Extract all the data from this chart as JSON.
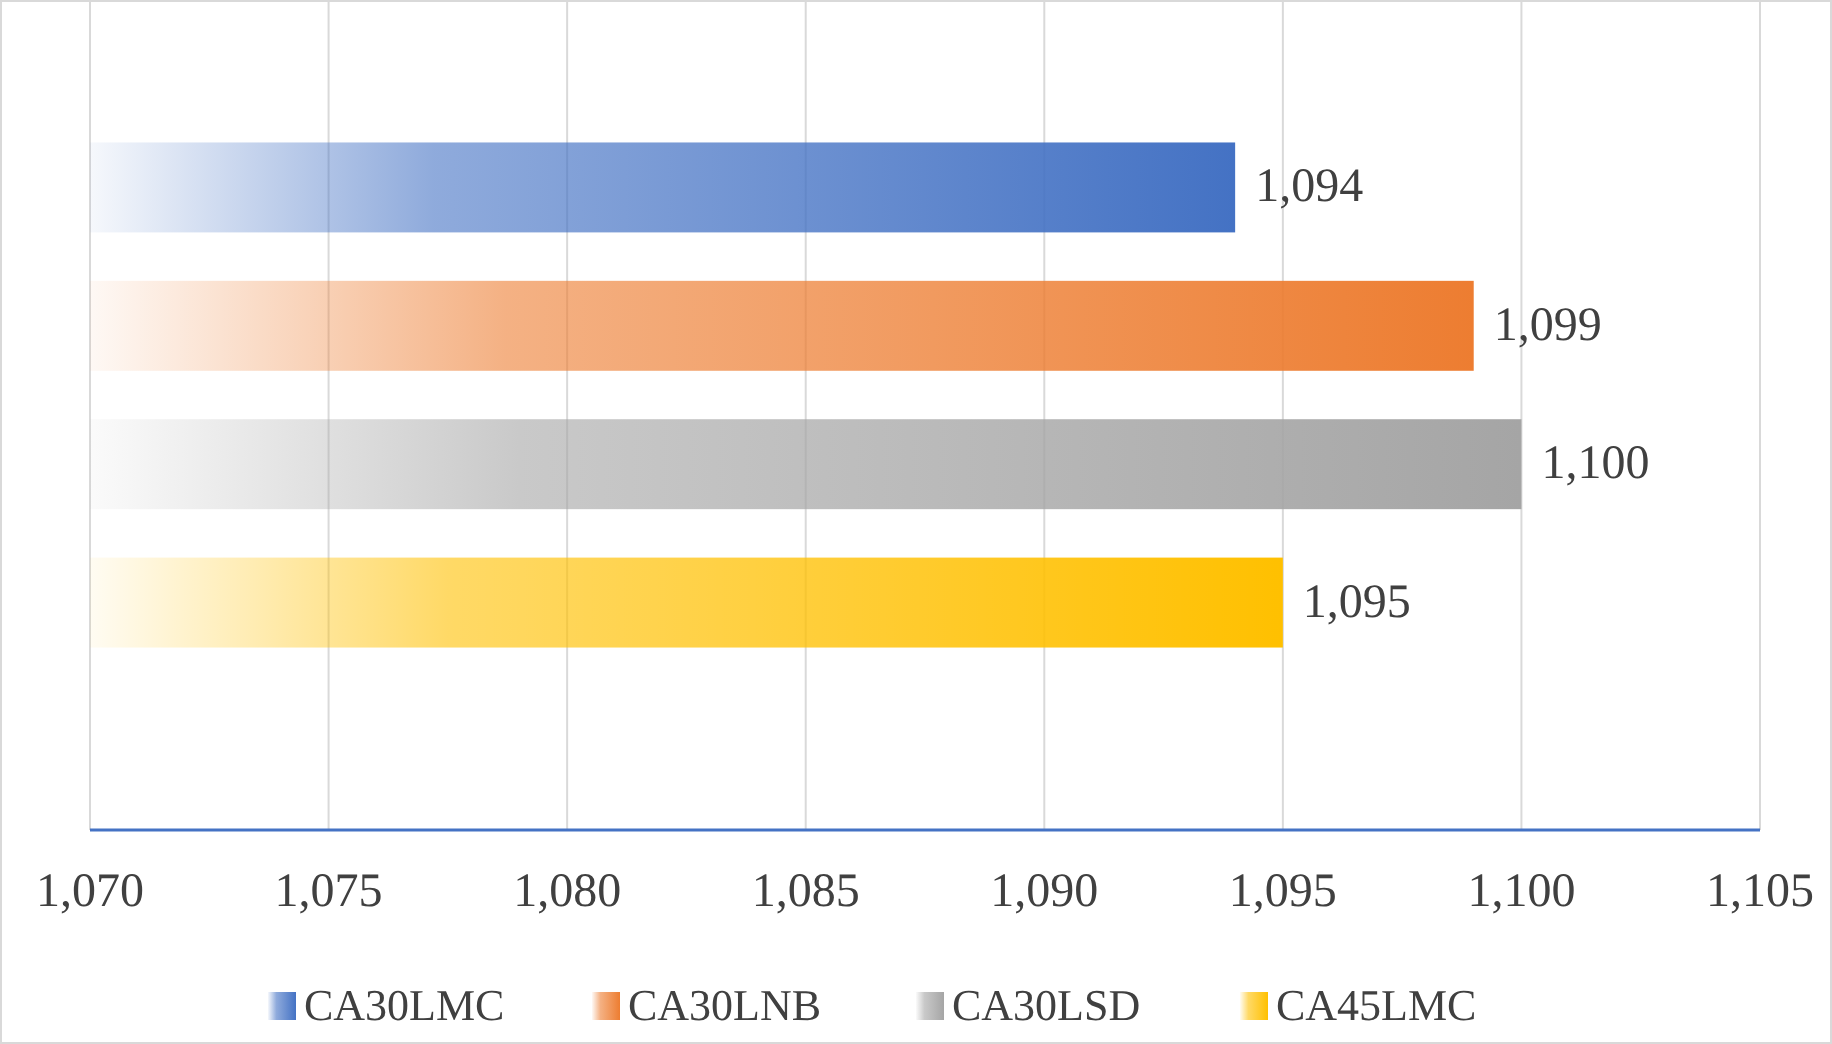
{
  "chart_data": {
    "type": "bar",
    "orientation": "horizontal",
    "categories": [
      null
    ],
    "series": [
      {
        "name": "CA30LMC",
        "color": "#4472c4",
        "values": [
          1094
        ],
        "value_labels": [
          "1,094"
        ]
      },
      {
        "name": "CA30LNB",
        "color": "#ed7d31",
        "values": [
          1099
        ],
        "value_labels": [
          "1,099"
        ]
      },
      {
        "name": "CA30LSD",
        "color": "#a5a5a5",
        "values": [
          1100
        ],
        "value_labels": [
          "1,100"
        ]
      },
      {
        "name": "CA45LMC",
        "color": "#ffc000",
        "values": [
          1095
        ],
        "value_labels": [
          "1,095"
        ]
      }
    ],
    "xlim": [
      1070,
      1105
    ],
    "xticks": [
      {
        "value": 1070,
        "label": "1,070"
      },
      {
        "value": 1075,
        "label": "1,075"
      },
      {
        "value": 1080,
        "label": "1,080"
      },
      {
        "value": 1085,
        "label": "1,085"
      },
      {
        "value": 1090,
        "label": "1,090"
      },
      {
        "value": 1095,
        "label": "1,095"
      },
      {
        "value": 1100,
        "label": "1,100"
      },
      {
        "value": 1105,
        "label": "1,105"
      }
    ],
    "grid": "x",
    "legend": "bottom"
  }
}
